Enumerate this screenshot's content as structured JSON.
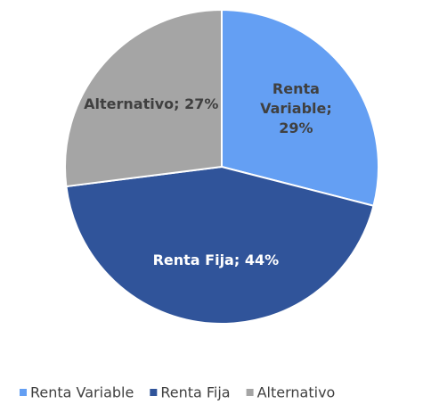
{
  "chart_data": {
    "type": "pie",
    "categories": [
      "Renta Variable",
      "Renta Fija",
      "Alternativo"
    ],
    "values": [
      29,
      44,
      27
    ],
    "value_labels": [
      "Renta Variable; 29%",
      "Renta Fija; 44%",
      "Alternativo; 27%"
    ],
    "colors": [
      "#649ff3",
      "#30549a",
      "#a5a5a5"
    ],
    "legend": "bottom"
  }
}
